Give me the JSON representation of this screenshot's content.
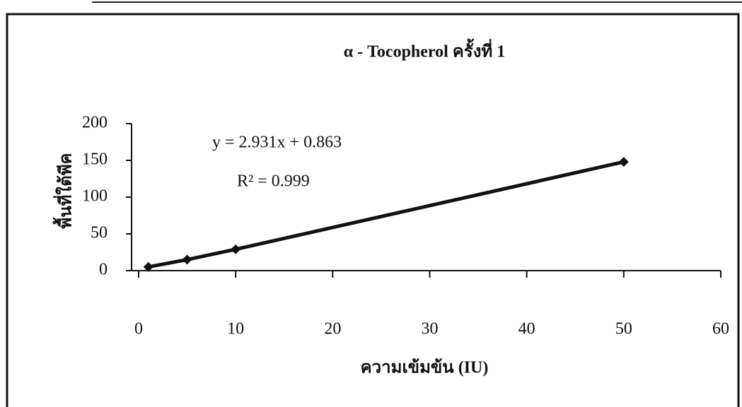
{
  "chart_data": {
    "type": "scatter-line",
    "title": "α - Tocopherol ครั้งที่ 1",
    "x_label": "ความเข้มข้น (IU)",
    "y_label": "พื้นที่ใต้พีค",
    "annotations": [
      "y = 2.931x + 0.863",
      "R² = 0.999"
    ],
    "x": [
      1,
      5,
      10,
      50
    ],
    "series": [
      {
        "color": "#111111",
        "values": [
          5,
          15,
          29,
          148
        ]
      }
    ],
    "xlim": [
      0,
      60
    ],
    "xticks": [
      0,
      10,
      20,
      30,
      40,
      50,
      60
    ],
    "ylim": [
      0,
      200
    ],
    "yticks": [
      0,
      50,
      100,
      150,
      200
    ],
    "grid": false
  }
}
